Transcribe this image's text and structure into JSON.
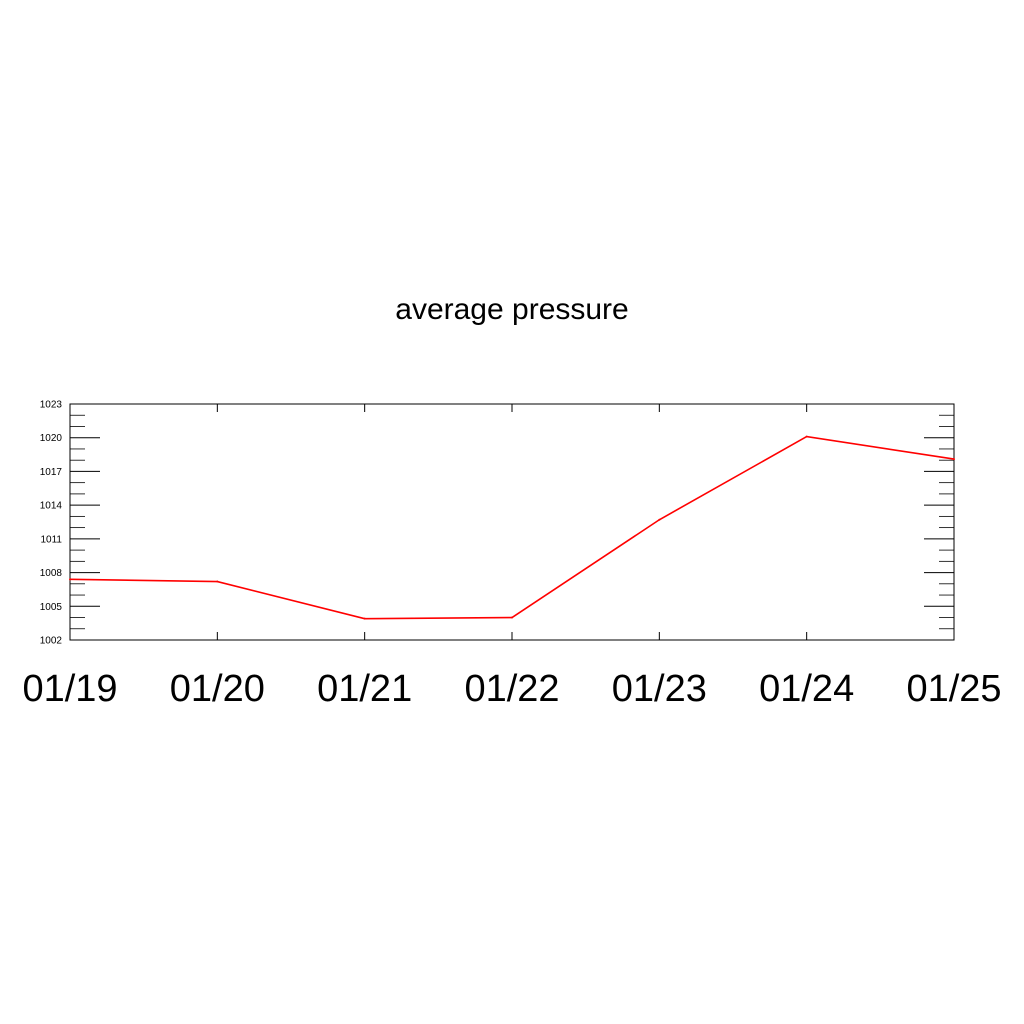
{
  "chart_data": {
    "type": "line",
    "title": "average pressure",
    "xlabel": "",
    "ylabel": "",
    "categories": [
      "01/19",
      "01/20",
      "01/21",
      "01/22",
      "01/23",
      "01/24",
      "01/25"
    ],
    "y_ticks": [
      "1002",
      "1005",
      "1008",
      "1011",
      "1014",
      "1017",
      "1020",
      "1023"
    ],
    "ylim": [
      1002,
      1023
    ],
    "grid": false,
    "legend": "none",
    "series": [
      {
        "color": "#ff0000",
        "values": [
          1007.4,
          1007.2,
          1003.9,
          1004.0,
          1012.7,
          1020.1,
          1018.1
        ]
      }
    ]
  }
}
